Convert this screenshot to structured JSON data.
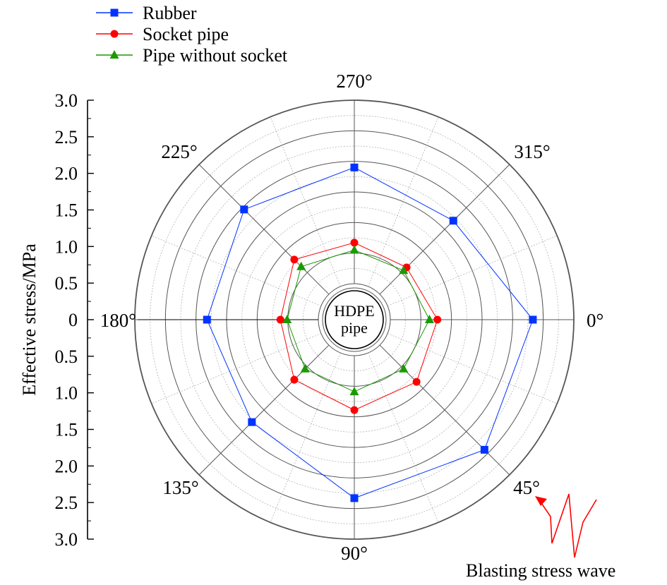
{
  "chart_data": {
    "type": "polar-line",
    "ylabel": "Effective stress/MPa",
    "rlim": [
      0,
      3.0
    ],
    "radial_axis_ticks": [
      "3.0",
      "2.5",
      "2.0",
      "1.5",
      "1.0",
      "0.5",
      "0",
      "0.5",
      "1.0",
      "1.5",
      "2.0",
      "2.5",
      "3.0"
    ],
    "angle_labels": [
      {
        "angle": 0,
        "label": "0°"
      },
      {
        "angle": 45,
        "label": "45°"
      },
      {
        "angle": 90,
        "label": "90°"
      },
      {
        "angle": 135,
        "label": "135°"
      },
      {
        "angle": 180,
        "label": "180°"
      },
      {
        "angle": 225,
        "label": "225°"
      },
      {
        "angle": 270,
        "label": "270°"
      },
      {
        "angle": 315,
        "label": "315°"
      }
    ],
    "angles": [
      0,
      45,
      90,
      135,
      180,
      225,
      270,
      315
    ],
    "series": [
      {
        "name": "Rubber",
        "marker": "square",
        "color": "#0033ff",
        "values": [
          2.33,
          2.42,
          2.33,
          1.78,
          1.82,
          1.96,
          1.9,
          1.7
        ]
      },
      {
        "name": "Socket pipe",
        "marker": "circle",
        "color": "#ff0000",
        "values": [
          0.77,
          0.85,
          0.89,
          0.8,
          0.62,
          0.8,
          0.67,
          0.62
        ]
      },
      {
        "name": "Pipe without socket",
        "marker": "triangle",
        "color": "#1a9a00",
        "values": [
          0.64,
          0.55,
          0.59,
          0.55,
          0.51,
          0.64,
          0.55,
          0.55
        ]
      }
    ],
    "center_label_line1": "HDPE",
    "center_label_line2": "pipe",
    "annotation": "Blasting stress wave",
    "gridlines": "dotted",
    "legend_position": "top-left"
  }
}
